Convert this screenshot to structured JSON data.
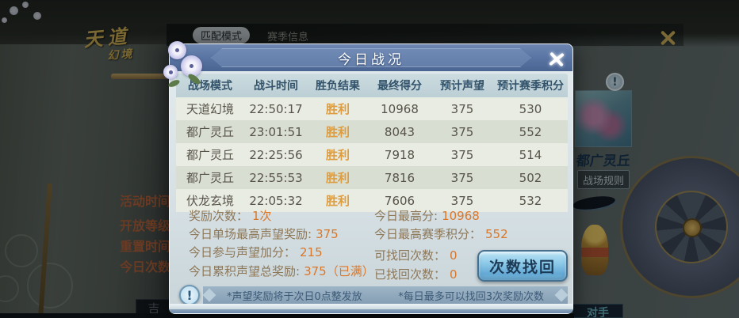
{
  "colors": {
    "accent_orange": "#d9772a",
    "win_orange": "#dd9c3e",
    "title_bar_blue": "#5b76a4",
    "retrieve_button_blue": "#8ecbe9",
    "gold": "#c9a54a"
  },
  "background": {
    "logo_line1": "天道",
    "logo_line2": "幻境",
    "tabs": [
      {
        "label": "匹配模式"
      },
      {
        "label": "赛季信息"
      }
    ],
    "window_close_icon": "x-cross",
    "left_labels": [
      "活动时间",
      "开放等级",
      "重置时间",
      "今日次数"
    ],
    "right_card": {
      "alert_glyph": "!",
      "title": "都广灵丘",
      "rules_button": "战场规则"
    },
    "bottom_left_partial_glyph": "吉",
    "bottom_right_partial_button": "对手"
  },
  "dialog": {
    "title": "今日战况",
    "close_icon": "x-cross",
    "alert_glyph": "!",
    "table": {
      "headers": [
        "战场模式",
        "战斗时间",
        "胜负结果",
        "最终得分",
        "预计声望",
        "预计赛季积分"
      ],
      "rows": [
        {
          "mode": "天道幻境",
          "time": "22:50:17",
          "result": "胜利",
          "score": "10968",
          "reputation": "375",
          "season_points": "530"
        },
        {
          "mode": "都广灵丘",
          "time": "23:01:51",
          "result": "胜利",
          "score": "8043",
          "reputation": "375",
          "season_points": "552"
        },
        {
          "mode": "都广灵丘",
          "time": "22:25:56",
          "result": "胜利",
          "score": "7918",
          "reputation": "375",
          "season_points": "514"
        },
        {
          "mode": "都广灵丘",
          "time": "22:55:53",
          "result": "胜利",
          "score": "7816",
          "reputation": "375",
          "season_points": "502"
        },
        {
          "mode": "伏龙玄境",
          "time": "22:05:32",
          "result": "胜利",
          "score": "7606",
          "reputation": "375",
          "season_points": "532"
        }
      ]
    },
    "stats_left": [
      {
        "label": "奖励次数：",
        "value": "1次"
      },
      {
        "label": "今日单场最高声望奖励:",
        "value": "375"
      },
      {
        "label": "今日参与声望加分：",
        "value": "215"
      },
      {
        "label": "今日累积声望总奖励:",
        "value": "375（已满）"
      }
    ],
    "stats_right": [
      {
        "label": "今日最高分:",
        "value": "10968"
      },
      {
        "label": "今日最高赛季积分：",
        "value": "552"
      },
      {
        "label": "可找回次数：",
        "value": "0"
      },
      {
        "label": "已找回次数：",
        "value": "0"
      }
    ],
    "retrieve_button": "次数找回",
    "notes": [
      "*声望奖励将于次日0点整发放",
      "*每日最多可以找回3次奖励次数"
    ]
  }
}
